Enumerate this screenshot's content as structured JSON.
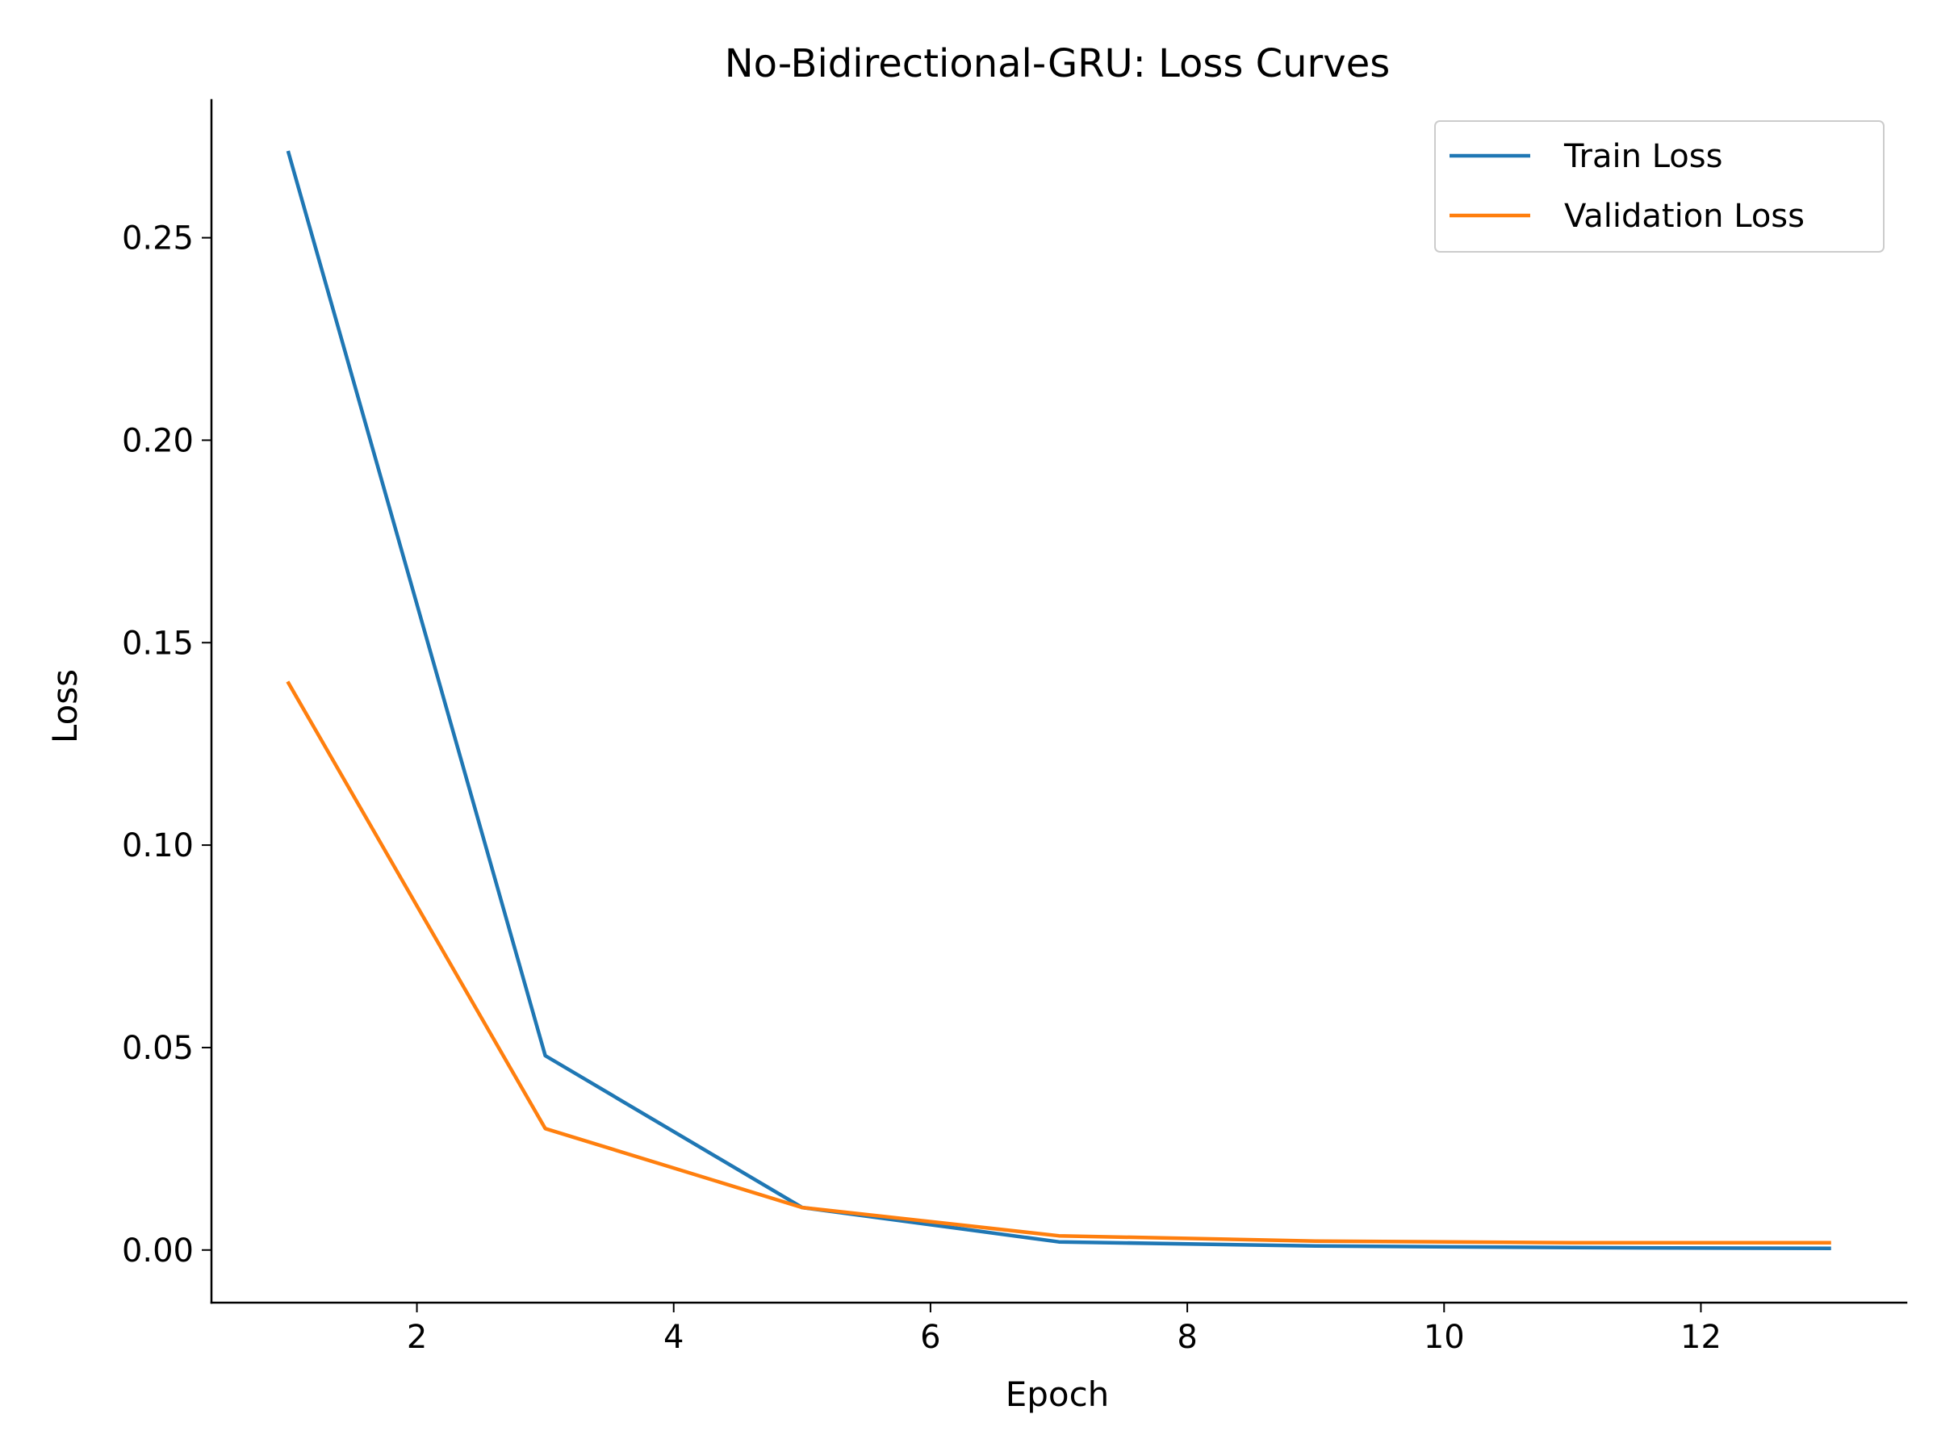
{
  "chart_data": {
    "type": "line",
    "title": "No-Bidirectional-GRU: Loss Curves",
    "xlabel": "Epoch",
    "ylabel": "Loss",
    "x": [
      1,
      3,
      5,
      7,
      9,
      11,
      13
    ],
    "series": [
      {
        "name": "Train Loss",
        "color": "#1f77b4",
        "values": [
          0.271,
          0.048,
          0.0105,
          0.002,
          0.001,
          0.0006,
          0.0004
        ]
      },
      {
        "name": "Validation Loss",
        "color": "#ff7f0e",
        "values": [
          0.14,
          0.03,
          0.0105,
          0.0035,
          0.0022,
          0.0018,
          0.0018
        ]
      }
    ],
    "xlim": [
      0.4,
      13.6
    ],
    "ylim": [
      -0.013,
      0.284
    ],
    "xticks": [
      2,
      4,
      6,
      8,
      10,
      12
    ],
    "xtick_labels": [
      "2",
      "4",
      "6",
      "8",
      "10",
      "12"
    ],
    "yticks": [
      0.0,
      0.05,
      0.1,
      0.15,
      0.2,
      0.25
    ],
    "ytick_labels": [
      "0.00",
      "0.05",
      "0.10",
      "0.15",
      "0.20",
      "0.25"
    ],
    "grid": false,
    "legend": "top-right"
  }
}
